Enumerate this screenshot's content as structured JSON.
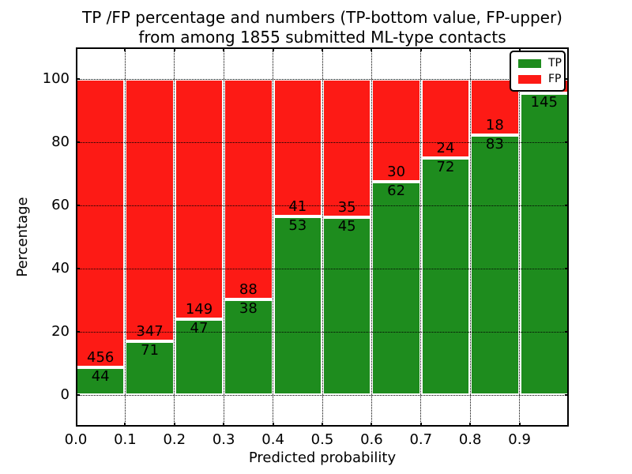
{
  "title": {
    "line1": "TP /FP percentage and numbers (TP-bottom value, FP-upper)",
    "line2": "from among 1855 submitted ML-type contacts"
  },
  "axes": {
    "xlabel": "Predicted probability",
    "ylabel": "Percentage",
    "xtick_labels": [
      "0.0",
      "0.1",
      "0.2",
      "0.3",
      "0.4",
      "0.5",
      "0.6",
      "0.7",
      "0.8",
      "0.9"
    ],
    "ytick_labels": [
      "0",
      "20",
      "40",
      "60",
      "80",
      "100"
    ],
    "ytick_values": [
      0,
      20,
      40,
      60,
      80,
      100
    ],
    "xlim": [
      0.0,
      1.0
    ],
    "ylim": [
      -10,
      110
    ],
    "grid_style": "dotted"
  },
  "legend": {
    "position": "upper-right",
    "items": [
      {
        "label": "TP",
        "color": "#1e8c1e"
      },
      {
        "label": "FP",
        "color": "#fd1a15"
      }
    ]
  },
  "chart_data": {
    "type": "bar",
    "stacked": true,
    "title": "TP /FP percentage and numbers (TP-bottom value, FP-upper) from among 1855 submitted ML-type contacts",
    "xlabel": "Predicted probability",
    "ylabel": "Percentage",
    "ylim": [
      -10,
      110
    ],
    "xlim": [
      0.0,
      1.0
    ],
    "total_contacts": 1855,
    "bin_width": 0.1,
    "bin_starts": [
      0.0,
      0.1,
      0.2,
      0.3,
      0.4,
      0.5,
      0.6,
      0.7,
      0.8,
      0.9
    ],
    "series": [
      {
        "name": "TP",
        "color": "#1e8c1e",
        "counts": [
          44,
          71,
          47,
          38,
          53,
          45,
          62,
          72,
          83,
          145
        ],
        "pct": [
          8.8,
          17.0,
          24.0,
          30.2,
          56.4,
          56.3,
          67.4,
          75.0,
          82.2,
          95.4
        ]
      },
      {
        "name": "FP",
        "color": "#fd1a15",
        "counts": [
          456,
          347,
          149,
          88,
          41,
          35,
          30,
          24,
          18,
          null
        ],
        "pct": [
          91.2,
          83.0,
          76.0,
          69.8,
          43.6,
          43.7,
          32.6,
          25.0,
          17.8,
          4.6
        ]
      }
    ],
    "tp_labels": [
      "44",
      "71",
      "47",
      "38",
      "53",
      "45",
      "62",
      "72",
      "83",
      "145"
    ],
    "fp_labels": [
      "456",
      "347",
      "149",
      "88",
      "41",
      "35",
      "30",
      "24",
      "18",
      ""
    ]
  }
}
